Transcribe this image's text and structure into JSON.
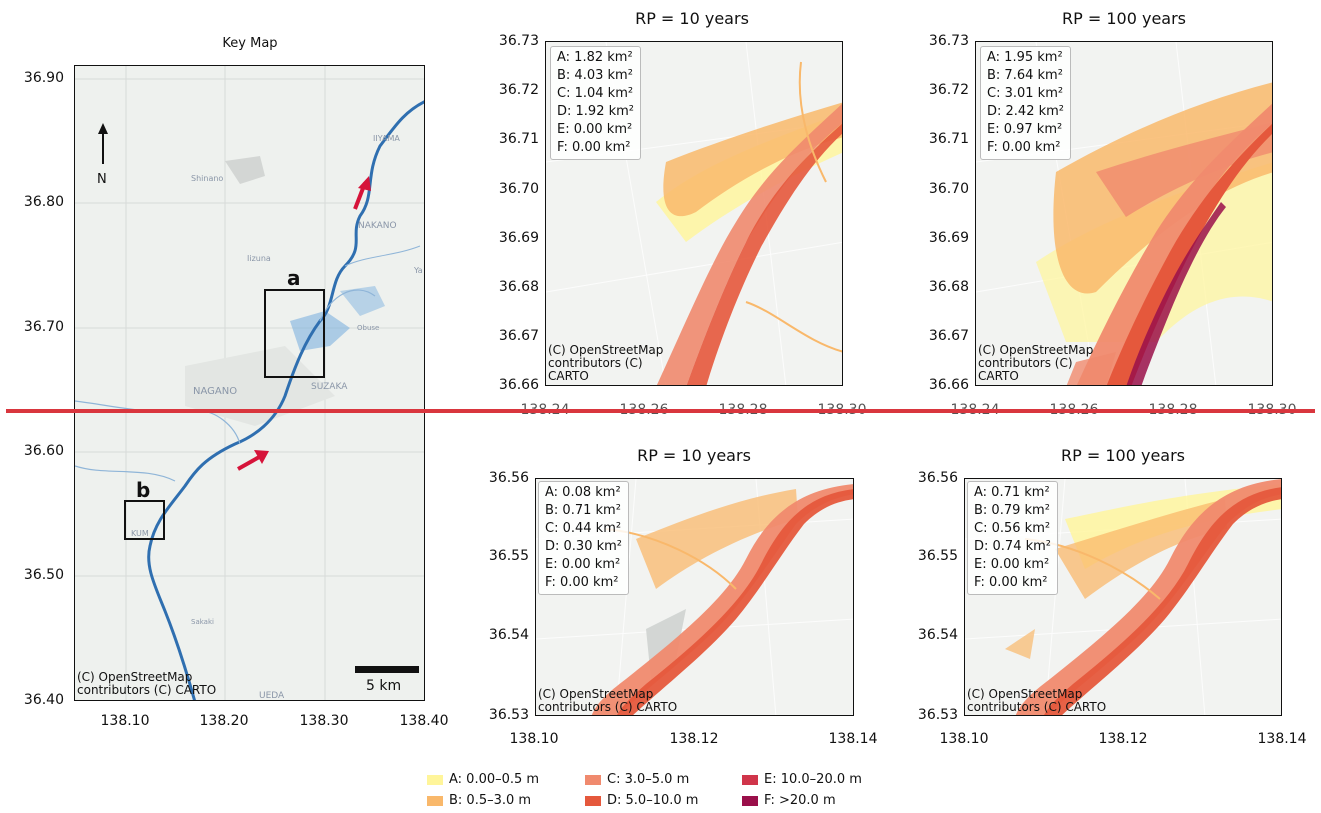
{
  "key_map": {
    "title": "Key Map",
    "y_ticks": [
      "36.90",
      "36.80",
      "36.70",
      "36.60",
      "36.50",
      "36.40"
    ],
    "x_ticks": [
      "138.10",
      "138.20",
      "138.30",
      "138.40"
    ],
    "north_label": "N",
    "place_labels": [
      "IIYAMA",
      "Shinano",
      "NAKANO",
      "Iizuna",
      "Obuse",
      "NAGANO",
      "SUZAKA",
      "Ya",
      "UEDA",
      "Sakaki",
      "KUM"
    ],
    "box_a_label": "a",
    "box_b_label": "b",
    "scale_bar_label": "5 km",
    "credit": "(C) OpenStreetMap contributors (C) CARTO",
    "colors": {
      "river": "#2f6fb0",
      "flood_blue": "#7fb3e0",
      "box": "#111111",
      "arrow": "#d6143a"
    }
  },
  "panels": [
    {
      "title": "RP = 10 years",
      "y_ticks": [
        "36.73",
        "36.72",
        "36.71",
        "36.70",
        "36.69",
        "36.68",
        "36.67",
        "36.66"
      ],
      "x_ticks": [
        "138.24",
        "138.26",
        "138.28",
        "138.30"
      ],
      "stats": [
        "A: 1.82 km²",
        "B: 4.03 km²",
        "C: 1.04 km²",
        "D: 1.92 km²",
        "E: 0.00 km²",
        "F: 0.00 km²"
      ],
      "credit_line1": "(C) OpenStreetMap",
      "credit_line2": "contributors (C)",
      "credit_line3": "CARTO"
    },
    {
      "title": "RP = 100 years",
      "y_ticks": [
        "36.73",
        "36.72",
        "36.71",
        "36.70",
        "36.69",
        "36.68",
        "36.67",
        "36.66"
      ],
      "x_ticks": [
        "138.24",
        "138.26",
        "138.28",
        "138.30"
      ],
      "stats": [
        "A: 1.95 km²",
        "B: 7.64 km²",
        "C: 3.01 km²",
        "D: 2.42 km²",
        "E: 0.97 km²",
        "F: 0.00 km²"
      ],
      "credit_line1": "(C) OpenStreetMap",
      "credit_line2": "contributors (C)",
      "credit_line3": "CARTO"
    },
    {
      "title": "RP = 10 years",
      "y_ticks": [
        "36.56",
        "36.55",
        "36.54",
        "36.53"
      ],
      "x_ticks": [
        "138.10",
        "138.12",
        "138.14"
      ],
      "stats": [
        "A: 0.08 km²",
        "B: 0.71 km²",
        "C: 0.44 km²",
        "D: 0.30 km²",
        "E: 0.00 km²",
        "F: 0.00 km²"
      ],
      "credit_line1": "(C) OpenStreetMap",
      "credit_line2": "contributors (C) CARTO",
      "credit_line3": ""
    },
    {
      "title": "RP = 100 years",
      "y_ticks": [
        "36.56",
        "36.55",
        "36.54",
        "36.53"
      ],
      "x_ticks": [
        "138.10",
        "138.12",
        "138.14"
      ],
      "stats": [
        "A: 0.71 km²",
        "B: 0.79 km²",
        "C: 0.56 km²",
        "D: 0.74 km²",
        "E: 0.00 km²",
        "F: 0.00 km²"
      ],
      "credit_line1": "(C) OpenStreetMap",
      "credit_line2": "contributors (C) CARTO",
      "credit_line3": ""
    }
  ],
  "legend": [
    {
      "label": "A: 0.00–0.5 m",
      "color": "#fff59a"
    },
    {
      "label": "B: 0.5–3.0 m",
      "color": "#f9b86b"
    },
    {
      "label": "C: 3.0–5.0 m",
      "color": "#f08a6e"
    },
    {
      "label": "D: 5.0–10.0 m",
      "color": "#e5583c"
    },
    {
      "label": "E: 10.0–20.0 m",
      "color": "#d0354a"
    },
    {
      "label": "F: >20.0 m",
      "color": "#9a0f4a"
    }
  ],
  "divider_color": "#d9363e"
}
